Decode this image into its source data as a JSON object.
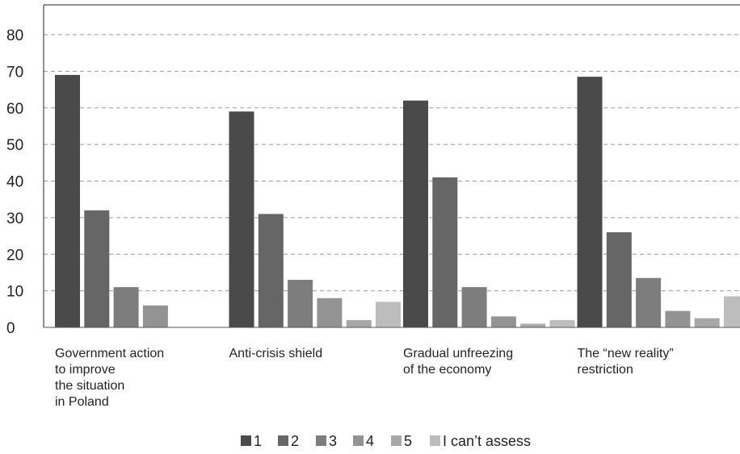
{
  "chart_data": {
    "type": "bar",
    "title": "",
    "xlabel": "",
    "ylabel": "",
    "ylim": [
      0,
      80
    ],
    "yticks": [
      0,
      10,
      20,
      30,
      40,
      50,
      60,
      70,
      80
    ],
    "grid": true,
    "legend_position": "bottom-center",
    "categories": [
      [
        "Government action",
        "to improve",
        "the situation",
        "in Poland"
      ],
      [
        "Anti-crisis shield"
      ],
      [
        "Gradual unfreezing",
        "of the economy"
      ],
      [
        "The “new reality”",
        "restriction"
      ]
    ],
    "series": [
      {
        "name": "1",
        "color": "#4a4a4a",
        "values": [
          69,
          59,
          62,
          68.5
        ]
      },
      {
        "name": "2",
        "color": "#666666",
        "values": [
          32,
          31,
          41,
          26
        ]
      },
      {
        "name": "3",
        "color": "#7d7d7d",
        "values": [
          11,
          13,
          11,
          13.5
        ]
      },
      {
        "name": "4",
        "color": "#939393",
        "values": [
          6,
          8,
          3,
          4.5
        ]
      },
      {
        "name": "5",
        "color": "#a8a8a8",
        "values": [
          null,
          2,
          1,
          2.5
        ]
      },
      {
        "name": "I can’t assess",
        "color": "#bdbdbd",
        "values": [
          null,
          7,
          2,
          8.5
        ]
      }
    ]
  }
}
